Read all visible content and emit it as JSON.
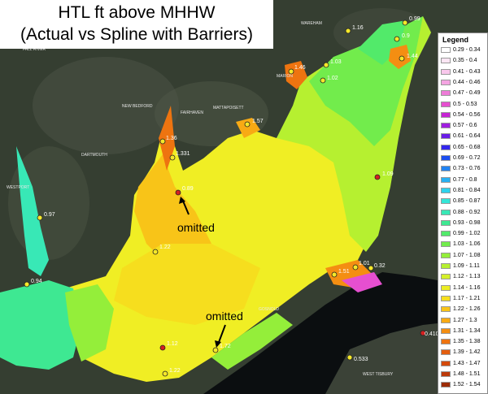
{
  "title": {
    "line1": "HTL ft above MHHW",
    "line2": "(Actual vs Spline with Barriers)"
  },
  "legend": {
    "title": "Legend",
    "items": [
      {
        "label": "0.29 - 0.34",
        "color": "#ffffff"
      },
      {
        "label": "0.35 - 0.4",
        "color": "#fce6f4"
      },
      {
        "label": "0.41 - 0.43",
        "color": "#f9c8ec"
      },
      {
        "label": "0.44 - 0.46",
        "color": "#f4a4e2"
      },
      {
        "label": "0.47 - 0.49",
        "color": "#ee7cd8"
      },
      {
        "label": "0.5 - 0.53",
        "color": "#e64fd0"
      },
      {
        "label": "0.54 - 0.56",
        "color": "#c624d4"
      },
      {
        "label": "0.57 - 0.6",
        "color": "#a01ee0"
      },
      {
        "label": "0.61 - 0.64",
        "color": "#6a1ce8"
      },
      {
        "label": "0.65 - 0.68",
        "color": "#3326ee"
      },
      {
        "label": "0.69 - 0.72",
        "color": "#1c4ef0"
      },
      {
        "label": "0.73 - 0.76",
        "color": "#2283f2"
      },
      {
        "label": "0.77 - 0.8",
        "color": "#28b0f2"
      },
      {
        "label": "0.81 - 0.84",
        "color": "#2ed2ec"
      },
      {
        "label": "0.85 - 0.87",
        "color": "#34e6d8"
      },
      {
        "label": "0.88 - 0.92",
        "color": "#38e8b6"
      },
      {
        "label": "0.93 - 0.98",
        "color": "#3ee892"
      },
      {
        "label": "0.99 - 1.02",
        "color": "#52ea6a"
      },
      {
        "label": "1.03 - 1.06",
        "color": "#72ec4c"
      },
      {
        "label": "1.07 - 1.08",
        "color": "#94ee3a"
      },
      {
        "label": "1.09 - 1.11",
        "color": "#b6f030"
      },
      {
        "label": "1.12 - 1.13",
        "color": "#d4f02a"
      },
      {
        "label": "1.14 - 1.16",
        "color": "#ecee24"
      },
      {
        "label": "1.17 - 1.21",
        "color": "#f6de1e"
      },
      {
        "label": "1.22 - 1.26",
        "color": "#f8c418"
      },
      {
        "label": "1.27 - 1.3",
        "color": "#f8aa14"
      },
      {
        "label": "1.31 - 1.34",
        "color": "#f48e12"
      },
      {
        "label": "1.35 - 1.38",
        "color": "#ee7410"
      },
      {
        "label": "1.39 - 1.42",
        "color": "#e45e0e"
      },
      {
        "label": "1.43 - 1.47",
        "color": "#d44a0c"
      },
      {
        "label": "1.48 - 1.51",
        "color": "#bc3a0a"
      },
      {
        "label": "1.52 - 1.54",
        "color": "#9c2c08"
      }
    ]
  },
  "stations": [
    {
      "label": "0.99",
      "color": "#f5e82a"
    },
    {
      "label": "1.16",
      "color": "#f5e82a"
    },
    {
      "label": "0.9",
      "color": "#f5e82a"
    },
    {
      "label": "1.44",
      "color": "#f5e82a"
    },
    {
      "label": "1.46",
      "color": "#f5e82a"
    },
    {
      "label": "1.03",
      "color": "#f5e82a"
    },
    {
      "label": "1.02",
      "color": "#f5e82a"
    },
    {
      "label": "1.57",
      "color": "#f5e82a"
    },
    {
      "label": "1.36",
      "color": "#f5e82a"
    },
    {
      "label": "1.331",
      "color": "#f5e82a"
    },
    {
      "label": "0.89",
      "color": "#d42020"
    },
    {
      "label": "1.09",
      "color": "#d42020"
    },
    {
      "label": "0.97",
      "color": "#f5e82a"
    },
    {
      "label": "1.22",
      "color": "#f5e82a"
    },
    {
      "label": "1.01",
      "color": "#f5e82a"
    },
    {
      "label": "1.51",
      "color": "#f5e82a"
    },
    {
      "label": "0.32",
      "color": "#f5e82a"
    },
    {
      "label": "0.94",
      "color": "#f5e82a"
    },
    {
      "label": "1.12",
      "color": "#d42020"
    },
    {
      "label": "1.72",
      "color": "#f5e82a"
    },
    {
      "label": "1.22",
      "color": "#f5e82a"
    },
    {
      "label": "0.410",
      "color": "#d42020"
    },
    {
      "label": "0.533",
      "color": "#f5e82a"
    }
  ],
  "annotations": [
    {
      "text": "omitted"
    },
    {
      "text": "omitted"
    }
  ],
  "places": [
    "FALL RIVER",
    "NEW BEDFORD",
    "FAIRHAVEN",
    "MATTAPOISETT",
    "MARION",
    "WAREHAM",
    "DARTMOUTH",
    "WESTPORT",
    "GOSNOLD",
    "WEST TISBURY"
  ]
}
